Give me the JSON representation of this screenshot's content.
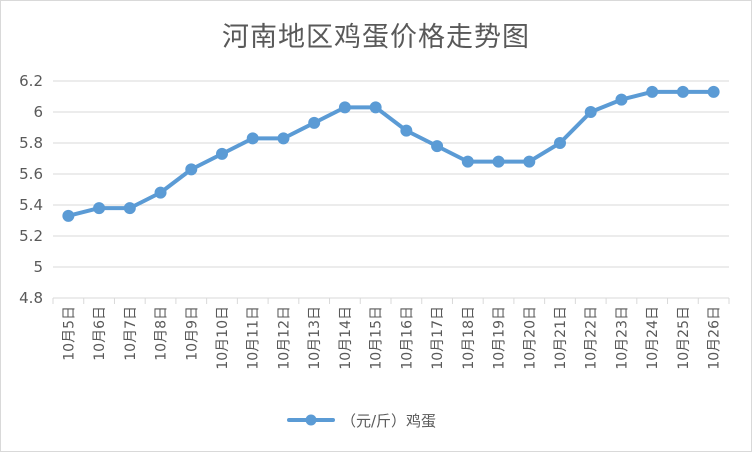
{
  "chart_data": {
    "type": "line",
    "title": "河南地区鸡蛋价格走势图",
    "x": [
      "10月5日",
      "10月6日",
      "10月7日",
      "10月8日",
      "10月9日",
      "10月10日",
      "10月11日",
      "10月12日",
      "10月13日",
      "10月14日",
      "10月15日",
      "10月16日",
      "10月17日",
      "10月18日",
      "10月19日",
      "10月20日",
      "10月21日",
      "10月22日",
      "10月23日",
      "10月24日",
      "10月25日",
      "10月26日"
    ],
    "series": [
      {
        "name": "（元/斤）鸡蛋",
        "color": "#5b9bd5",
        "values": [
          5.33,
          5.38,
          5.38,
          5.48,
          5.63,
          5.73,
          5.83,
          5.83,
          5.93,
          6.03,
          6.03,
          5.88,
          5.78,
          5.68,
          5.68,
          5.68,
          5.8,
          6.0,
          6.08,
          6.13,
          6.13,
          6.13
        ]
      }
    ],
    "ylim": [
      4.8,
      6.2
    ],
    "yticks": [
      "4.8",
      "5",
      "5.2",
      "5.4",
      "5.6",
      "5.8",
      "6",
      "6.2"
    ],
    "grid": true,
    "legend": "bottom",
    "xlabel": "",
    "ylabel": ""
  }
}
